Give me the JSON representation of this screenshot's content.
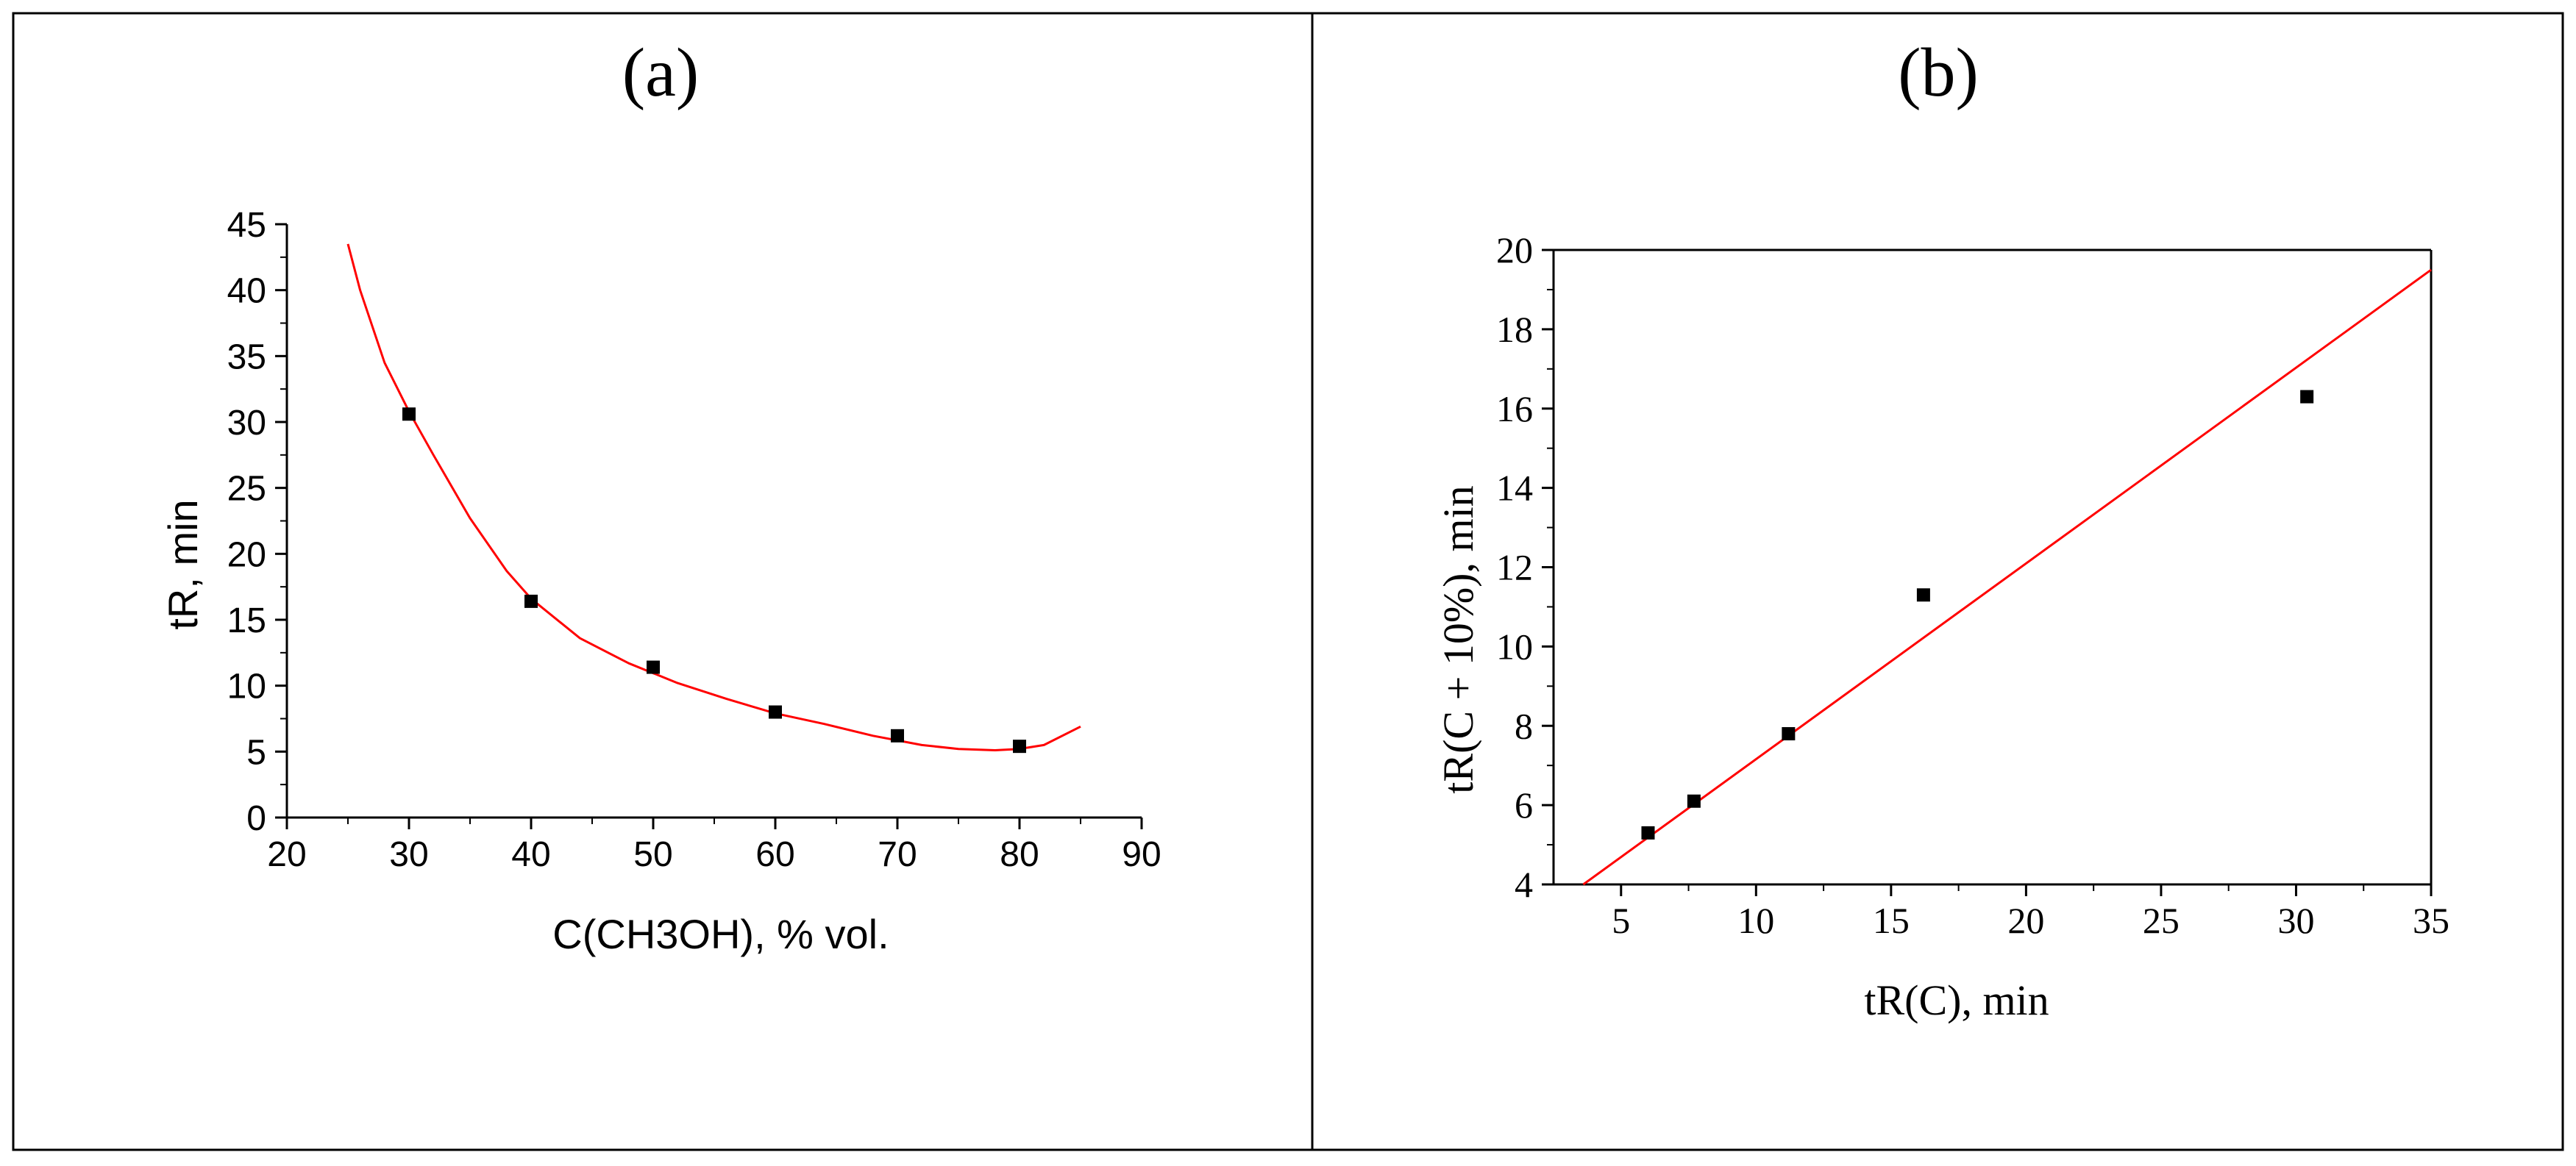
{
  "chart_data": [
    {
      "id": "a",
      "label": "(a)",
      "type": "scatter",
      "xlabel": "C(CH3OH), % vol.",
      "ylabel": "tR, min",
      "xlim": [
        20,
        90
      ],
      "ylim": [
        0,
        45
      ],
      "xticks": [
        20,
        30,
        40,
        50,
        60,
        70,
        80,
        90
      ],
      "yticks": [
        0,
        5,
        10,
        15,
        20,
        25,
        30,
        35,
        40,
        45
      ],
      "grid": false,
      "series": [
        {
          "kind": "points",
          "color": "#000000",
          "x": [
            30,
            40,
            50,
            60,
            70,
            80
          ],
          "y": [
            30.6,
            16.4,
            11.4,
            8.0,
            6.2,
            5.4
          ]
        },
        {
          "kind": "fit-curve",
          "color": "#ff0000",
          "x": [
            25,
            26,
            28,
            30,
            32,
            35,
            38,
            40,
            44,
            48,
            52,
            56,
            60,
            64,
            68,
            72,
            75,
            78,
            80,
            82,
            85
          ],
          "y": [
            43.5,
            40.0,
            34.5,
            30.8,
            27.5,
            22.7,
            18.7,
            16.6,
            13.6,
            11.7,
            10.2,
            9.0,
            7.9,
            7.1,
            6.2,
            5.5,
            5.2,
            5.1,
            5.2,
            5.5,
            6.9
          ]
        }
      ]
    },
    {
      "id": "b",
      "label": "(b)",
      "type": "scatter",
      "xlabel": "tR(C), min",
      "ylabel": "tR(C + 10%), min",
      "xlim": [
        2.5,
        35
      ],
      "ylim": [
        4,
        20
      ],
      "xticks": [
        5,
        10,
        15,
        20,
        25,
        30,
        35
      ],
      "yticks": [
        4,
        6,
        8,
        10,
        12,
        14,
        16,
        18,
        20
      ],
      "grid": false,
      "series": [
        {
          "kind": "points",
          "color": "#000000",
          "x": [
            6.0,
            7.7,
            11.2,
            16.2,
            30.4
          ],
          "y": [
            5.3,
            6.1,
            7.8,
            11.3,
            16.3
          ]
        },
        {
          "kind": "fit-line",
          "color": "#ff0000",
          "x": [
            3.6,
            35.0
          ],
          "y": [
            4.0,
            19.5
          ]
        }
      ]
    }
  ]
}
